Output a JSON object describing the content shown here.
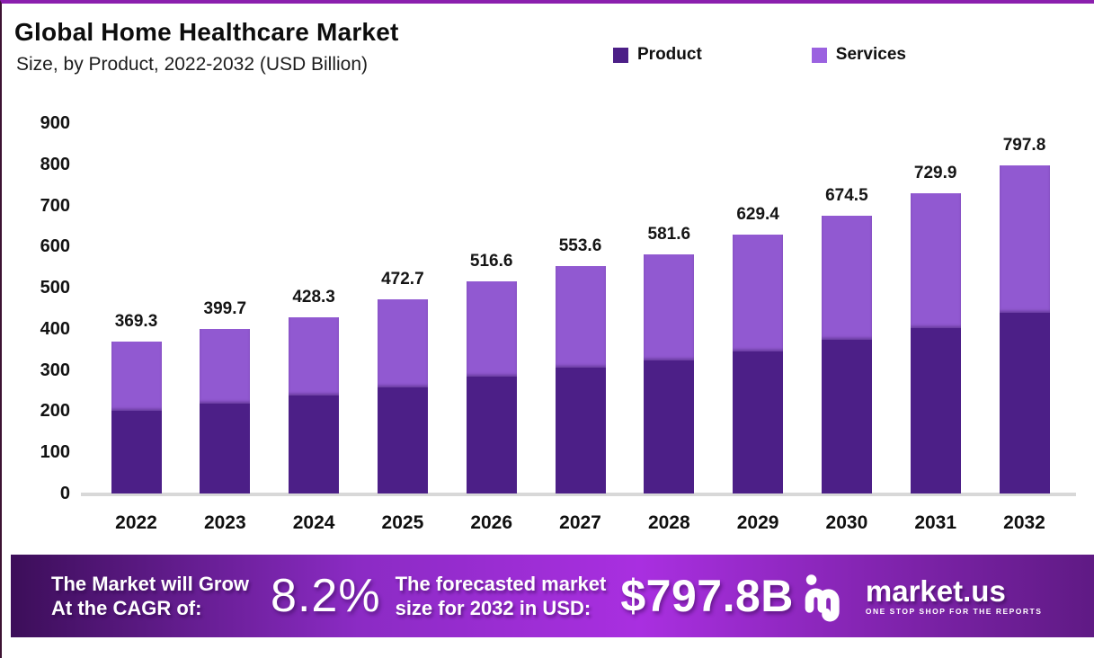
{
  "frame": {
    "border_top_color": "#8b1fae",
    "border_left_color": "#3d1333",
    "background": "#ffffff"
  },
  "header": {
    "title": "Global Home Healthcare Market",
    "subtitle": "Size, by Product, 2022-2032 (USD Billion)"
  },
  "legend": {
    "items": [
      {
        "label": "Product",
        "color": "#4c1f87"
      },
      {
        "label": "Services",
        "color": "#9b62e0"
      }
    ]
  },
  "chart_data": {
    "type": "bar",
    "stacked": true,
    "title": "Global Home Healthcare Market Size, by Product, 2022-2032 (USD Billion)",
    "categories": [
      "2022",
      "2023",
      "2024",
      "2025",
      "2026",
      "2027",
      "2028",
      "2029",
      "2030",
      "2031",
      "2032"
    ],
    "series": [
      {
        "name": "Product",
        "color": "#4c1f87",
        "values": [
          200.1,
          219.4,
          237.2,
          258.3,
          283.6,
          305.4,
          322.3,
          345.7,
          372.6,
          401.9,
          438.7
        ]
      },
      {
        "name": "Services",
        "color": "#9159d1",
        "values": [
          169.2,
          180.3,
          191.1,
          214.4,
          233.0,
          248.2,
          259.3,
          283.7,
          301.9,
          328.0,
          359.1
        ]
      }
    ],
    "totals": [
      369.3,
      399.7,
      428.3,
      472.7,
      516.6,
      553.6,
      581.6,
      629.4,
      674.5,
      729.9,
      797.8
    ],
    "xlabel": "",
    "ylabel": "",
    "ylim": [
      0,
      900
    ],
    "yticks": [
      0,
      100,
      200,
      300,
      400,
      500,
      600,
      700,
      800,
      900
    ],
    "grid": false,
    "legend_position": "top"
  },
  "banner": {
    "cagr_label_line1": "The Market will Grow",
    "cagr_label_line2": "At the CAGR of:",
    "cagr_value": "8.2%",
    "forecast_label_line1": "The forecasted market",
    "forecast_label_line2": "size for 2032 in USD:",
    "forecast_value": "$797.8B",
    "brand_name": "market.us",
    "brand_tagline": "ONE STOP SHOP FOR THE REPORTS",
    "gradient_left": "#3c0e59",
    "gradient_mid1": "#8b2bc4",
    "gradient_mid2": "#a92fe0",
    "gradient_right": "#5f1a84"
  }
}
